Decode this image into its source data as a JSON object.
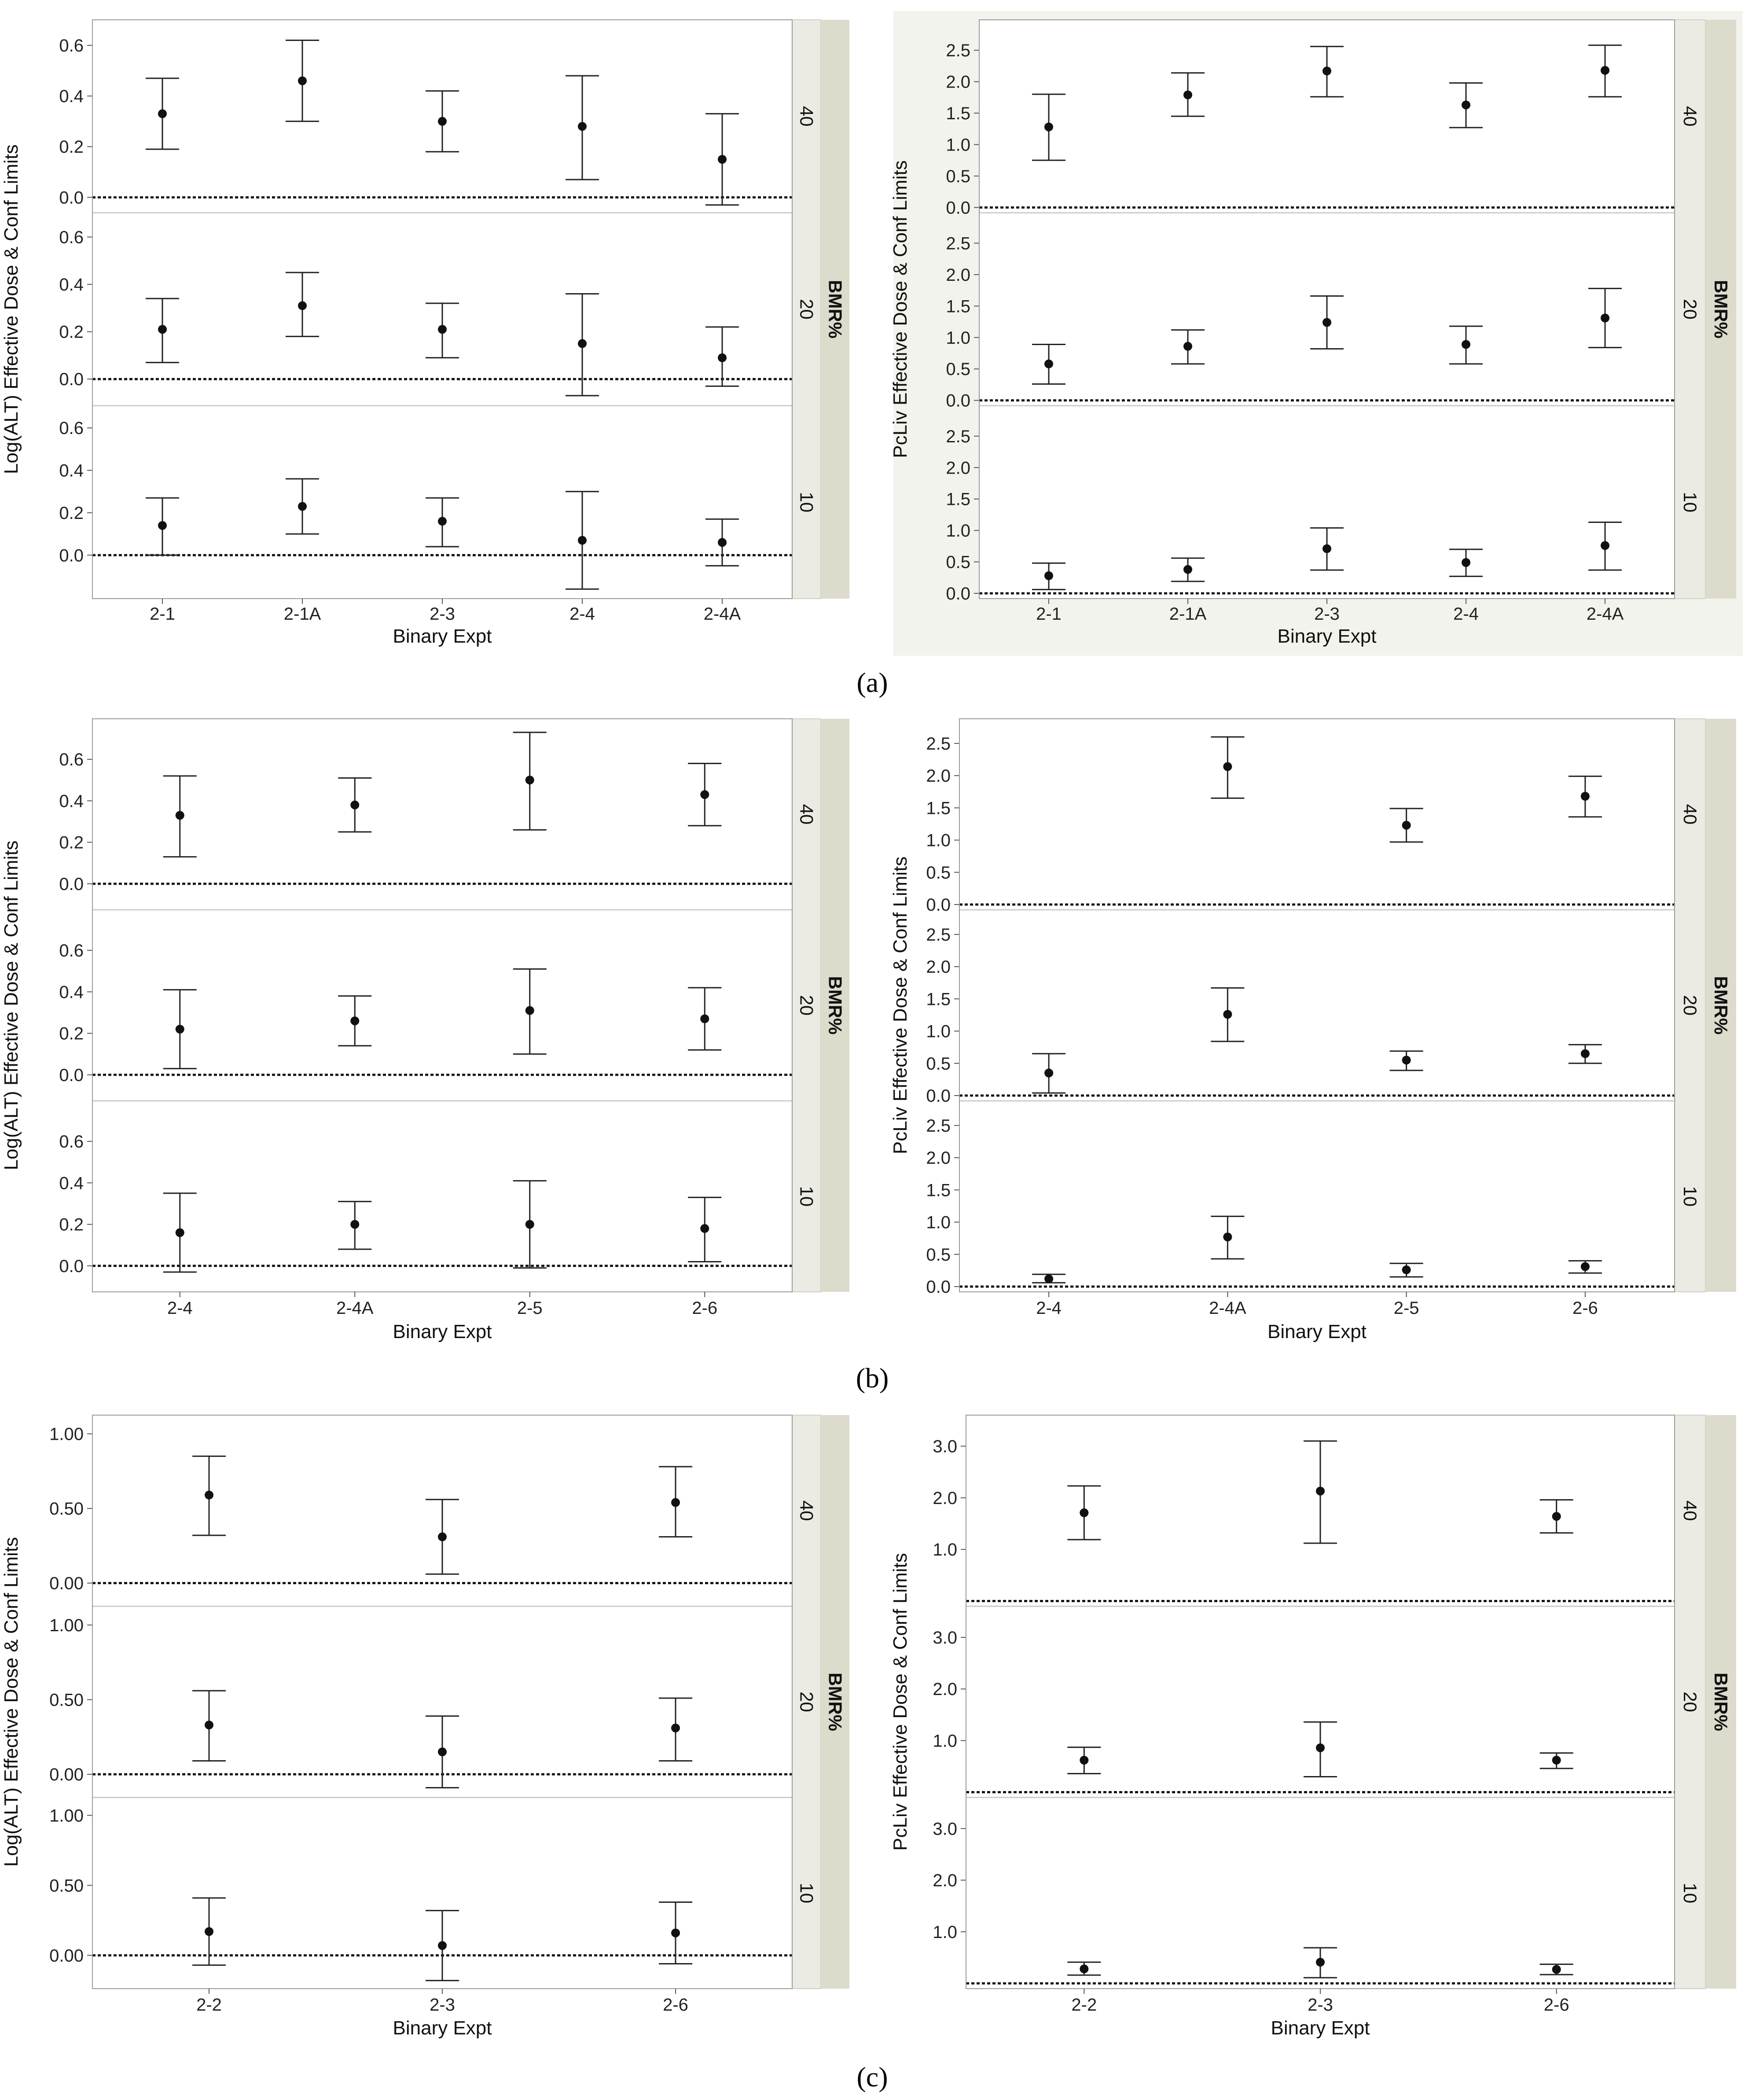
{
  "figure": {
    "captions": [
      "(a)",
      "(b)",
      "(c)"
    ]
  },
  "chart_data": [
    {
      "type": "errorbar",
      "panel": "a",
      "ylabel": "Log(ALT) Effective Dose & Conf Limits",
      "xlabel": "Binary Expt",
      "facet_title": "BMR%",
      "categories": [
        "2-1",
        "2-1A",
        "2-3",
        "2-4",
        "2-4A"
      ],
      "yticks": [
        "0.0",
        "0.2",
        "0.4",
        "0.6"
      ],
      "facets": [
        {
          "label": "40",
          "ylim": [
            -0.04,
            0.68
          ],
          "points": [
            {
              "y": 0.33,
              "lo": 0.19,
              "hi": 0.47
            },
            {
              "y": 0.46,
              "lo": 0.3,
              "hi": 0.62
            },
            {
              "y": 0.3,
              "lo": 0.18,
              "hi": 0.42
            },
            {
              "y": 0.28,
              "lo": 0.07,
              "hi": 0.48
            },
            {
              "y": 0.15,
              "lo": -0.03,
              "hi": 0.33
            }
          ]
        },
        {
          "label": "20",
          "ylim": [
            -0.09,
            0.68
          ],
          "points": [
            {
              "y": 0.21,
              "lo": 0.07,
              "hi": 0.34
            },
            {
              "y": 0.31,
              "lo": 0.18,
              "hi": 0.45
            },
            {
              "y": 0.21,
              "lo": 0.09,
              "hi": 0.32
            },
            {
              "y": 0.15,
              "lo": -0.07,
              "hi": 0.36
            },
            {
              "y": 0.09,
              "lo": -0.03,
              "hi": 0.22
            }
          ]
        },
        {
          "label": "10",
          "ylim": [
            -0.18,
            0.68
          ],
          "points": [
            {
              "y": 0.14,
              "lo": 0.0,
              "hi": 0.27
            },
            {
              "y": 0.23,
              "lo": 0.1,
              "hi": 0.36
            },
            {
              "y": 0.16,
              "lo": 0.04,
              "hi": 0.27
            },
            {
              "y": 0.07,
              "lo": -0.16,
              "hi": 0.3
            },
            {
              "y": 0.06,
              "lo": -0.05,
              "hi": 0.17
            }
          ]
        }
      ]
    },
    {
      "type": "errorbar",
      "panel": "a",
      "ylabel": "PcLiv Effective Dose & Conf Limits",
      "xlabel": "Binary Expt",
      "facet_title": "BMR%",
      "categories": [
        "2-1",
        "2-1A",
        "2-3",
        "2-4",
        "2-4A"
      ],
      "yticks": [
        "0.0",
        "0.5",
        "1.0",
        "1.5",
        "2.0",
        "2.5"
      ],
      "facets": [
        {
          "label": "40",
          "ylim": [
            0,
            2.9
          ],
          "points": [
            {
              "y": 1.28,
              "lo": 0.75,
              "hi": 1.8
            },
            {
              "y": 1.79,
              "lo": 1.45,
              "hi": 2.14
            },
            {
              "y": 2.17,
              "lo": 1.76,
              "hi": 2.56
            },
            {
              "y": 1.63,
              "lo": 1.27,
              "hi": 1.98
            },
            {
              "y": 2.18,
              "lo": 1.76,
              "hi": 2.58
            }
          ]
        },
        {
          "label": "20",
          "ylim": [
            0,
            2.9
          ],
          "points": [
            {
              "y": 0.58,
              "lo": 0.26,
              "hi": 0.89
            },
            {
              "y": 0.86,
              "lo": 0.58,
              "hi": 1.12
            },
            {
              "y": 1.24,
              "lo": 0.82,
              "hi": 1.66
            },
            {
              "y": 0.89,
              "lo": 0.58,
              "hi": 1.18
            },
            {
              "y": 1.31,
              "lo": 0.84,
              "hi": 1.78
            }
          ]
        },
        {
          "label": "10",
          "ylim": [
            0,
            2.9
          ],
          "points": [
            {
              "y": 0.28,
              "lo": 0.06,
              "hi": 0.48
            },
            {
              "y": 0.38,
              "lo": 0.19,
              "hi": 0.56
            },
            {
              "y": 0.71,
              "lo": 0.37,
              "hi": 1.04
            },
            {
              "y": 0.49,
              "lo": 0.27,
              "hi": 0.7
            },
            {
              "y": 0.76,
              "lo": 0.37,
              "hi": 1.13
            }
          ]
        }
      ]
    },
    {
      "type": "errorbar",
      "panel": "b",
      "ylabel": "Log(ALT) Effective Dose & Conf Limits",
      "xlabel": "Binary Expt",
      "facet_title": "BMR%",
      "categories": [
        "2-4",
        "2-4A",
        "2-5",
        "2-6"
      ],
      "yticks": [
        "0.0",
        "0.2",
        "0.4",
        "0.6"
      ],
      "facets": [
        {
          "label": "40",
          "ylim": [
            -0.1,
            0.77
          ],
          "points": [
            {
              "y": 0.33,
              "lo": 0.13,
              "hi": 0.52
            },
            {
              "y": 0.38,
              "lo": 0.25,
              "hi": 0.51
            },
            {
              "y": 0.5,
              "lo": 0.26,
              "hi": 0.73
            },
            {
              "y": 0.43,
              "lo": 0.28,
              "hi": 0.58
            }
          ]
        },
        {
          "label": "20",
          "ylim": [
            -0.1,
            0.77
          ],
          "points": [
            {
              "y": 0.22,
              "lo": 0.03,
              "hi": 0.41
            },
            {
              "y": 0.26,
              "lo": 0.14,
              "hi": 0.38
            },
            {
              "y": 0.31,
              "lo": 0.1,
              "hi": 0.51
            },
            {
              "y": 0.27,
              "lo": 0.12,
              "hi": 0.42
            }
          ]
        },
        {
          "label": "10",
          "ylim": [
            -0.1,
            0.77
          ],
          "points": [
            {
              "y": 0.16,
              "lo": -0.03,
              "hi": 0.35
            },
            {
              "y": 0.2,
              "lo": 0.08,
              "hi": 0.31
            },
            {
              "y": 0.2,
              "lo": -0.01,
              "hi": 0.41
            },
            {
              "y": 0.18,
              "lo": 0.02,
              "hi": 0.33
            }
          ]
        }
      ]
    },
    {
      "type": "errorbar",
      "panel": "b",
      "ylabel": "PcLiv Effective Dose & Conf Limits",
      "xlabel": "Binary Expt",
      "facet_title": "BMR%",
      "categories": [
        "2-4",
        "2-4A",
        "2-5",
        "2-6"
      ],
      "yticks": [
        "0.0",
        "0.5",
        "1.0",
        "1.5",
        "2.0",
        "2.5"
      ],
      "facets": [
        {
          "label": "40",
          "ylim": [
            0,
            2.8
          ],
          "points": [
            {
              "y": null,
              "lo": null,
              "hi": null
            },
            {
              "y": 2.14,
              "lo": 1.65,
              "hi": 2.6
            },
            {
              "y": 1.23,
              "lo": 0.97,
              "hi": 1.49
            },
            {
              "y": 1.68,
              "lo": 1.36,
              "hi": 1.99
            }
          ]
        },
        {
          "label": "20",
          "ylim": [
            0,
            2.8
          ],
          "points": [
            {
              "y": 0.35,
              "lo": 0.04,
              "hi": 0.65
            },
            {
              "y": 1.26,
              "lo": 0.84,
              "hi": 1.67
            },
            {
              "y": 0.55,
              "lo": 0.39,
              "hi": 0.69
            },
            {
              "y": 0.65,
              "lo": 0.5,
              "hi": 0.79
            }
          ]
        },
        {
          "label": "10",
          "ylim": [
            0,
            2.8
          ],
          "points": [
            {
              "y": 0.12,
              "lo": 0.06,
              "hi": 0.19
            },
            {
              "y": 0.77,
              "lo": 0.43,
              "hi": 1.09
            },
            {
              "y": 0.26,
              "lo": 0.15,
              "hi": 0.36
            },
            {
              "y": 0.31,
              "lo": 0.21,
              "hi": 0.4
            }
          ]
        }
      ]
    },
    {
      "type": "errorbar",
      "panel": "c",
      "ylabel": "Log(ALT) Effective Dose & Conf Limits",
      "xlabel": "Binary Expt",
      "facet_title": "BMR%",
      "categories": [
        "2-2",
        "2-3",
        "2-6"
      ],
      "yticks": [
        "0.00",
        "0.50",
        "1.00"
      ],
      "facets": [
        {
          "label": "40",
          "ylim": [
            -0.12,
            1.09
          ],
          "points": [
            {
              "y": 0.59,
              "lo": 0.32,
              "hi": 0.85
            },
            {
              "y": 0.31,
              "lo": 0.06,
              "hi": 0.56
            },
            {
              "y": 0.54,
              "lo": 0.31,
              "hi": 0.78
            }
          ]
        },
        {
          "label": "20",
          "ylim": [
            -0.12,
            1.09
          ],
          "points": [
            {
              "y": 0.33,
              "lo": 0.09,
              "hi": 0.56
            },
            {
              "y": 0.15,
              "lo": -0.09,
              "hi": 0.39
            },
            {
              "y": 0.31,
              "lo": 0.09,
              "hi": 0.51
            }
          ]
        },
        {
          "label": "10",
          "ylim": [
            -0.2,
            1.09
          ],
          "points": [
            {
              "y": 0.17,
              "lo": -0.07,
              "hi": 0.41
            },
            {
              "y": 0.07,
              "lo": -0.18,
              "hi": 0.32
            },
            {
              "y": 0.16,
              "lo": -0.06,
              "hi": 0.38
            }
          ]
        }
      ]
    },
    {
      "type": "errorbar",
      "panel": "c",
      "ylabel": "PcLiv Effective Dose & Conf Limits",
      "xlabel": "Binary Expt",
      "facet_title": "BMR%",
      "categories": [
        "2-2",
        "2-3",
        "2-6"
      ],
      "yticks": [
        "1.0",
        "2.0",
        "3.0"
      ],
      "facets": [
        {
          "label": "40",
          "ylim": [
            0,
            3.5
          ],
          "points": [
            {
              "y": 1.71,
              "lo": 1.19,
              "hi": 2.23
            },
            {
              "y": 2.13,
              "lo": 1.12,
              "hi": 3.1
            },
            {
              "y": 1.64,
              "lo": 1.32,
              "hi": 1.96
            }
          ]
        },
        {
          "label": "20",
          "ylim": [
            0,
            3.5
          ],
          "points": [
            {
              "y": 0.62,
              "lo": 0.36,
              "hi": 0.87
            },
            {
              "y": 0.86,
              "lo": 0.3,
              "hi": 1.36
            },
            {
              "y": 0.62,
              "lo": 0.46,
              "hi": 0.76
            }
          ]
        },
        {
          "label": "10",
          "ylim": [
            0,
            3.5
          ],
          "points": [
            {
              "y": 0.28,
              "lo": 0.16,
              "hi": 0.41
            },
            {
              "y": 0.41,
              "lo": 0.11,
              "hi": 0.69
            },
            {
              "y": 0.27,
              "lo": 0.17,
              "hi": 0.37
            }
          ]
        }
      ]
    }
  ]
}
